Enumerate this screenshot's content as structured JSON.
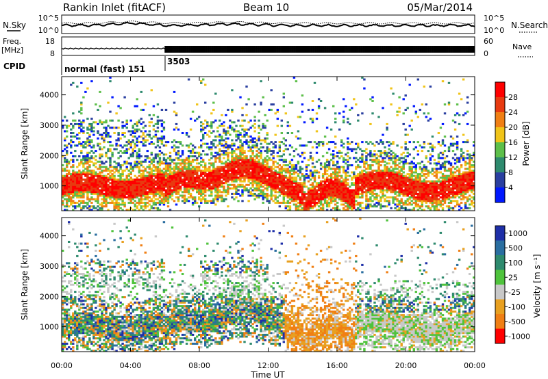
{
  "header": {
    "station": "Rankin Inlet (fitACF)",
    "beam": "Beam 10",
    "date": "05/Mar/2014"
  },
  "noise_panel": {
    "left_label": "N.Sky",
    "right_label": "N.Search",
    "left_ticks": [
      "10^5",
      "10^0"
    ],
    "right_ticks": [
      "10^5",
      "10^0"
    ]
  },
  "freq_panel": {
    "left_label_1": "Freq.",
    "left_label_2": "[MHz]",
    "right_label": "Nave",
    "left_ticks": [
      "18",
      "8"
    ],
    "right_ticks": [
      "60",
      "0"
    ]
  },
  "cpid_panel": {
    "label": "CPID",
    "segments": [
      {
        "start_hour": 0,
        "text": "normal (fast) 151"
      },
      {
        "start_hour": 6,
        "text": "3503"
      }
    ]
  },
  "colors": {
    "power": [
      "#0018ff",
      "#2a3fa0",
      "#2e8a6e",
      "#5dbf4a",
      "#f0c419",
      "#f07f14",
      "#e83a10",
      "#ff0000"
    ],
    "velocity": [
      "#1e2fa8",
      "#2a6ea0",
      "#2e8a6e",
      "#4fc33c",
      "#c8c8c8",
      "#e8a020",
      "#f07f14",
      "#ff0000"
    ]
  },
  "chart_data": [
    {
      "type": "heatmap",
      "name": "power",
      "ylabel": "Slant Range [km]",
      "ylim": [
        180,
        4600
      ],
      "yticks": [
        "1000",
        "2000",
        "3000",
        "4000"
      ],
      "xlim": [
        0,
        24
      ],
      "colorbar_label": "Power [dB]",
      "colorbar_ticks": [
        "4",
        "8",
        "12",
        "16",
        "20",
        "24",
        "28"
      ]
    },
    {
      "type": "heatmap",
      "name": "velocity",
      "ylabel": "Slant Range [km]",
      "ylim": [
        180,
        4600
      ],
      "yticks": [
        "1000",
        "2000",
        "3000",
        "4000"
      ],
      "xlim": [
        0,
        24
      ],
      "xticks": [
        "00:00",
        "04:00",
        "08:00",
        "12:00",
        "16:00",
        "20:00",
        "00:00"
      ],
      "xlabel": "Time UT",
      "colorbar_label": "Velocity [m s⁻¹]",
      "colorbar_ticks": [
        "1000",
        "500",
        "100",
        "25",
        "-25",
        "-100",
        "-500",
        "-1000"
      ]
    }
  ]
}
